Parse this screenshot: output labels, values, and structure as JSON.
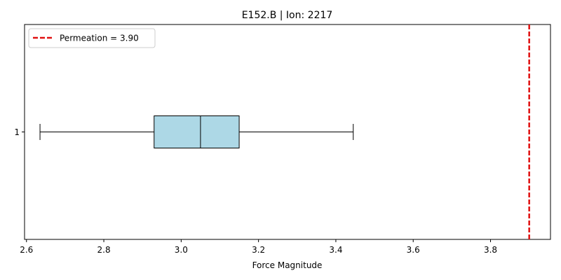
{
  "chart_data": {
    "type": "box",
    "orientation": "horizontal",
    "title": "E152.B | Ion: 2217",
    "xlabel": "Force Magnitude",
    "ylabel": "",
    "xlim": [
      2.595,
      3.955
    ],
    "x_ticks": [
      2.6,
      2.8,
      3.0,
      3.2,
      3.4,
      3.6,
      3.8
    ],
    "x_tick_labels": [
      "2.6",
      "2.8",
      "3.0",
      "3.2",
      "3.4",
      "3.6",
      "3.8"
    ],
    "categories": [
      "1"
    ],
    "boxes": [
      {
        "label": "1",
        "whisker_low": 2.635,
        "q1": 2.93,
        "median": 3.05,
        "q3": 3.15,
        "whisker_high": 3.445
      }
    ],
    "reference_line": {
      "value": 3.9,
      "label": "Permeation = 3.90",
      "color": "#e01010",
      "style": "dashed"
    },
    "box_color": "#add8e6",
    "legend": {
      "position": "top-left",
      "entries": [
        "Permeation = 3.90"
      ]
    },
    "grid": false
  }
}
